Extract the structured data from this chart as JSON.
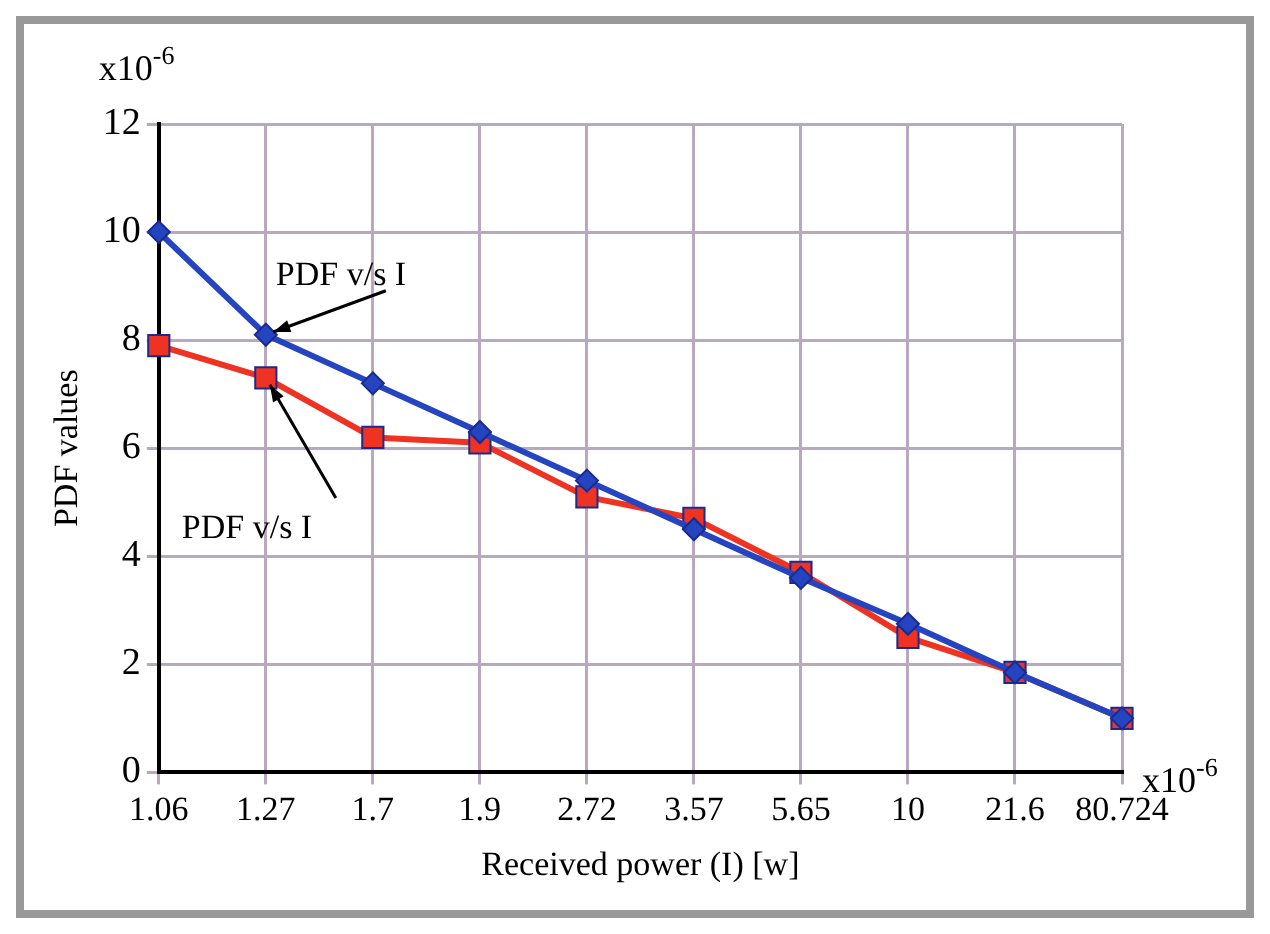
{
  "chart_data": {
    "type": "line",
    "xlabel": "Received power (I) [w]",
    "ylabel": "PDF values",
    "categories": [
      "1.06",
      "1.27",
      "1.7",
      "1.9",
      "2.72",
      "3.57",
      "5.65",
      "10",
      "21.6",
      "80.724"
    ],
    "series": [
      {
        "color": "#2444c0",
        "marker": "diamond",
        "values": [
          10,
          8.1,
          7.2,
          6.3,
          5.4,
          4.5,
          3.6,
          2.75,
          1.85,
          1.0
        ]
      },
      {
        "color": "#ee3322",
        "marker": "square",
        "values": [
          7.9,
          7.3,
          6.2,
          6.1,
          5.1,
          4.7,
          3.7,
          2.5,
          1.85,
          1.0
        ]
      }
    ],
    "ylim": [
      0,
      12
    ],
    "yticks": [
      0,
      2,
      4,
      6,
      8,
      10,
      12
    ],
    "grid": true,
    "legend": false,
    "line_style": "solid",
    "annotations": [
      {
        "text": "PDF v/s I",
        "x": "1.27",
        "y": 8.1
      },
      {
        "text": "PDF v/s I",
        "x": "1.27",
        "y": 7.3
      },
      "x10$^{-6}$",
      "x10$^{-6}$"
    ]
  }
}
